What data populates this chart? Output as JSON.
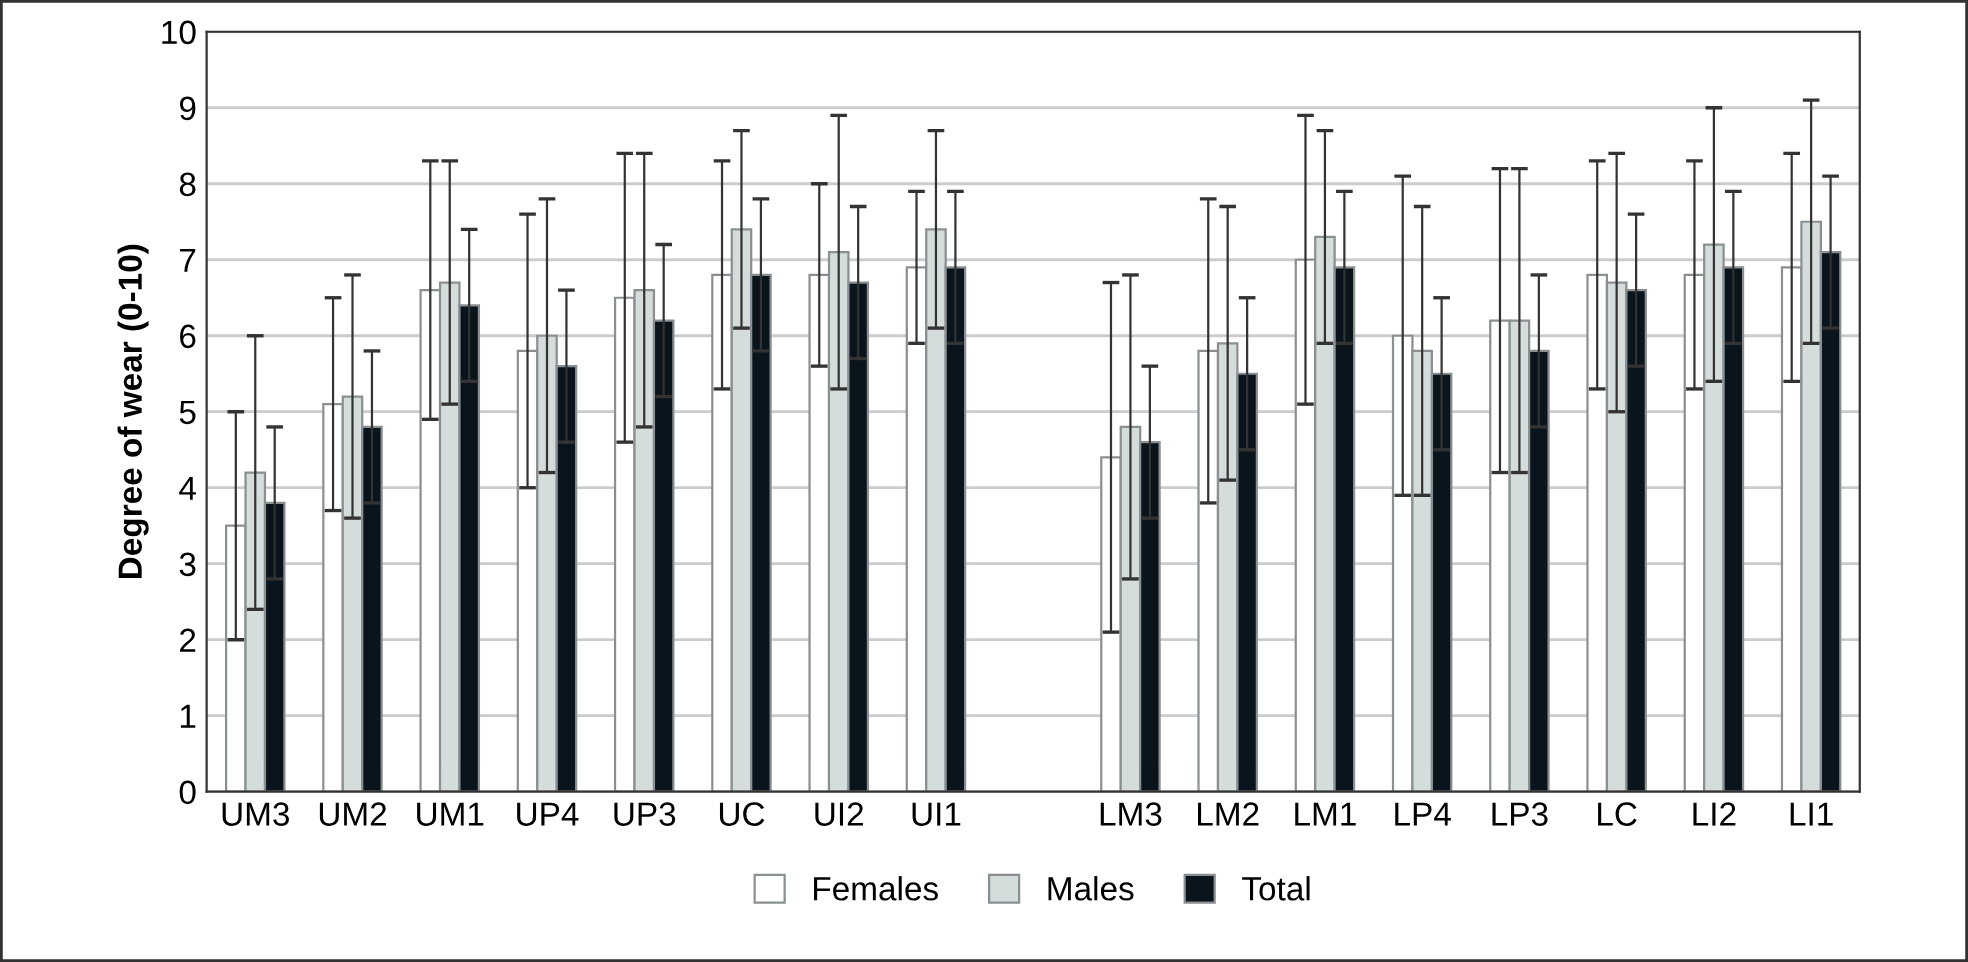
{
  "chart_data": {
    "type": "bar",
    "ylabel": "Degree of wear (0-10)",
    "categories": [
      "UM3",
      "UM2",
      "UM1",
      "UP4",
      "UP3",
      "UC",
      "UI2",
      "UI1",
      null,
      "LM3",
      "LM2",
      "LM1",
      "LP4",
      "LP3",
      "LC",
      "LI2",
      "LI1"
    ],
    "series": [
      {
        "name": "Females",
        "color": "#ffffff",
        "values": [
          3.5,
          5.1,
          6.6,
          5.8,
          6.5,
          6.8,
          6.8,
          6.9,
          null,
          4.4,
          5.8,
          7.0,
          6.0,
          6.2,
          6.8,
          6.8,
          6.9
        ],
        "errors": [
          1.5,
          1.4,
          1.7,
          1.8,
          1.9,
          1.5,
          1.2,
          1.0,
          null,
          2.3,
          2.0,
          1.9,
          2.1,
          2.0,
          1.5,
          1.5,
          1.5
        ]
      },
      {
        "name": "Males",
        "color": "#d5dcdc",
        "values": [
          4.2,
          5.2,
          6.7,
          6.0,
          6.6,
          7.4,
          7.1,
          7.4,
          null,
          4.8,
          5.9,
          7.3,
          5.8,
          6.2,
          6.7,
          7.2,
          7.5
        ],
        "errors": [
          1.8,
          1.6,
          1.6,
          1.8,
          1.8,
          1.3,
          1.8,
          1.3,
          null,
          2.0,
          1.8,
          1.4,
          1.9,
          2.0,
          1.7,
          1.8,
          1.6
        ]
      },
      {
        "name": "Total",
        "color": "#0a141c",
        "values": [
          3.8,
          4.8,
          6.4,
          5.6,
          6.2,
          6.8,
          6.7,
          6.9,
          null,
          4.6,
          5.5,
          6.9,
          5.5,
          5.8,
          6.6,
          6.9,
          7.1
        ],
        "errors": [
          1.0,
          1.0,
          1.0,
          1.0,
          1.0,
          1.0,
          1.0,
          1.0,
          null,
          1.0,
          1.0,
          1.0,
          1.0,
          1.0,
          1.0,
          1.0,
          1.0
        ]
      }
    ],
    "ylim": [
      0,
      10
    ],
    "yticks": [
      0,
      1,
      2,
      3,
      4,
      5,
      6,
      7,
      8,
      9,
      10
    ],
    "grid": "y",
    "legend": "bottom"
  }
}
